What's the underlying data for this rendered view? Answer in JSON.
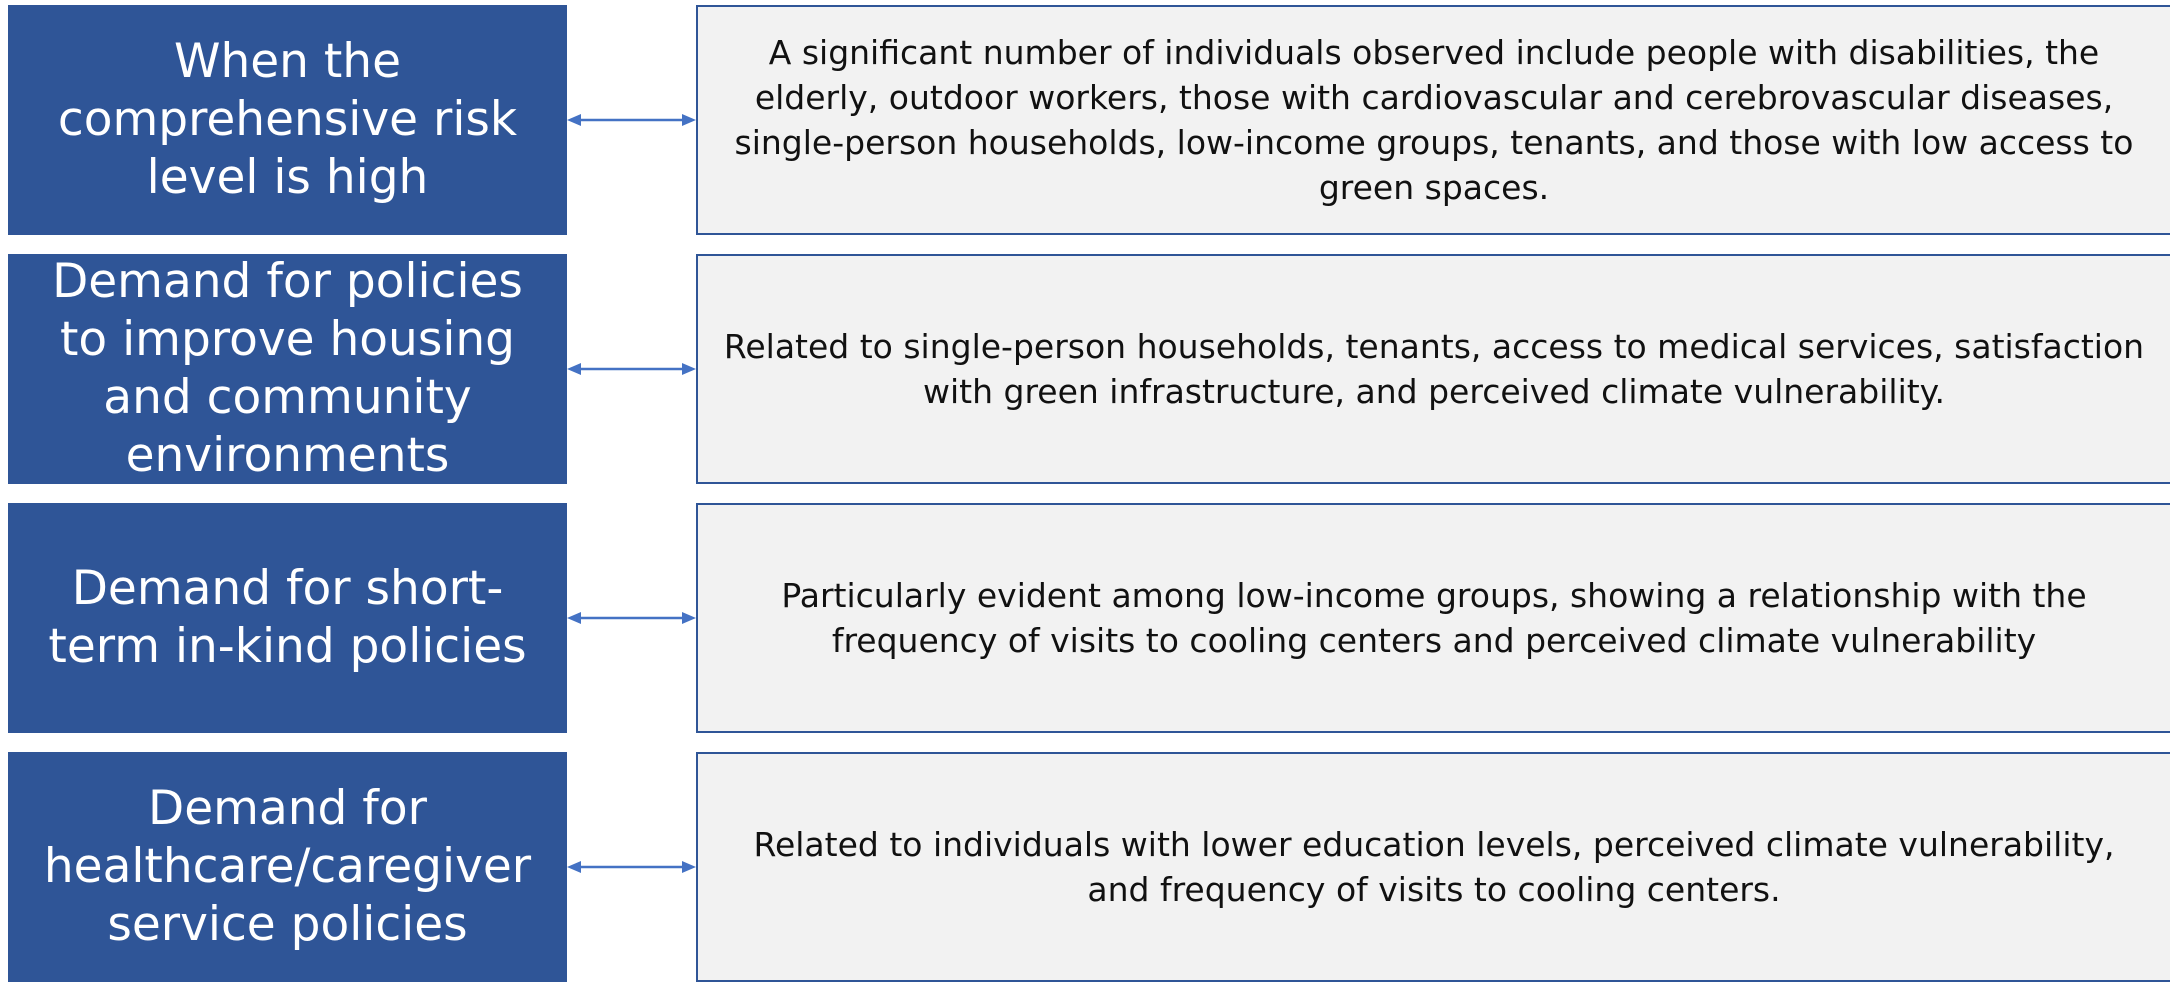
{
  "rows": [
    {
      "label": "When the comprehensive risk level is high",
      "description": "A significant number of individuals observed include people with disabilities, the elderly, outdoor workers, those with cardiovascular and cerebrovascular diseases, single-person households, low-income groups, tenants, and those with low access to green spaces."
    },
    {
      "label": "Demand for policies to improve housing and community environments",
      "description": "Related to single-person households, tenants, access to medical services, satisfaction with green infrastructure, and perceived climate vulnerability."
    },
    {
      "label": "Demand for short-term in-kind policies",
      "description": "Particularly evident among low-income groups, showing a relationship with the frequency of visits to cooling centers and perceived climate vulnerability"
    },
    {
      "label": "Demand for healthcare/caregiver service policies",
      "description": "Related to individuals with lower education levels, perceived climate vulnerability, and frequency of visits to cooling centers."
    }
  ]
}
